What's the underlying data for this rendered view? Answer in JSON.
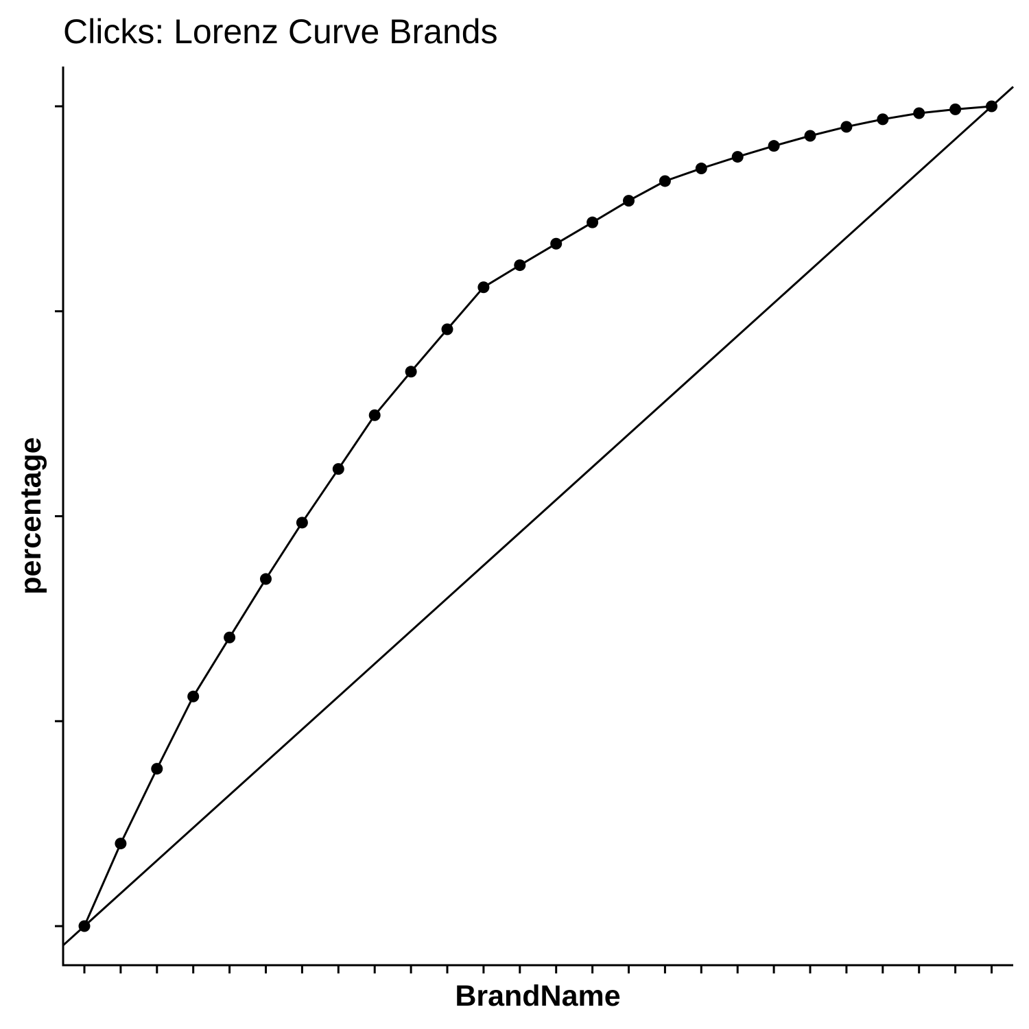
{
  "chart_data": {
    "type": "line",
    "title": "Clicks: Lorenz Curve Brands",
    "xlabel": "BrandName",
    "ylabel": "percentage",
    "x_tick_labels_shown": false,
    "y_tick_labels_shown": false,
    "x": [
      0,
      1,
      2,
      3,
      4,
      5,
      6,
      7,
      8,
      9,
      10,
      11,
      12,
      13,
      14,
      15,
      16,
      17,
      18,
      19,
      20,
      21,
      22,
      23,
      24,
      25
    ],
    "ylim": [
      -0.0485,
      1.0485
    ],
    "y_ticks": [
      0,
      0.25,
      0.5,
      0.75,
      1.0
    ],
    "series": [
      {
        "style": "line-with-points",
        "values": [
          0,
          0.1008,
          0.192,
          0.2801,
          0.3521,
          0.4234,
          0.4922,
          0.5576,
          0.6232,
          0.6763,
          0.728,
          0.7793,
          0.8062,
          0.8324,
          0.8584,
          0.8848,
          0.9088,
          0.9242,
          0.9384,
          0.9517,
          0.964,
          0.975,
          0.9842,
          0.9916,
          0.9963,
          1.0
        ]
      },
      {
        "style": "reference-line",
        "intercept": 0,
        "slope_per_point": 0.04,
        "description_text": ""
      }
    ],
    "grid": false,
    "legend": "none"
  }
}
